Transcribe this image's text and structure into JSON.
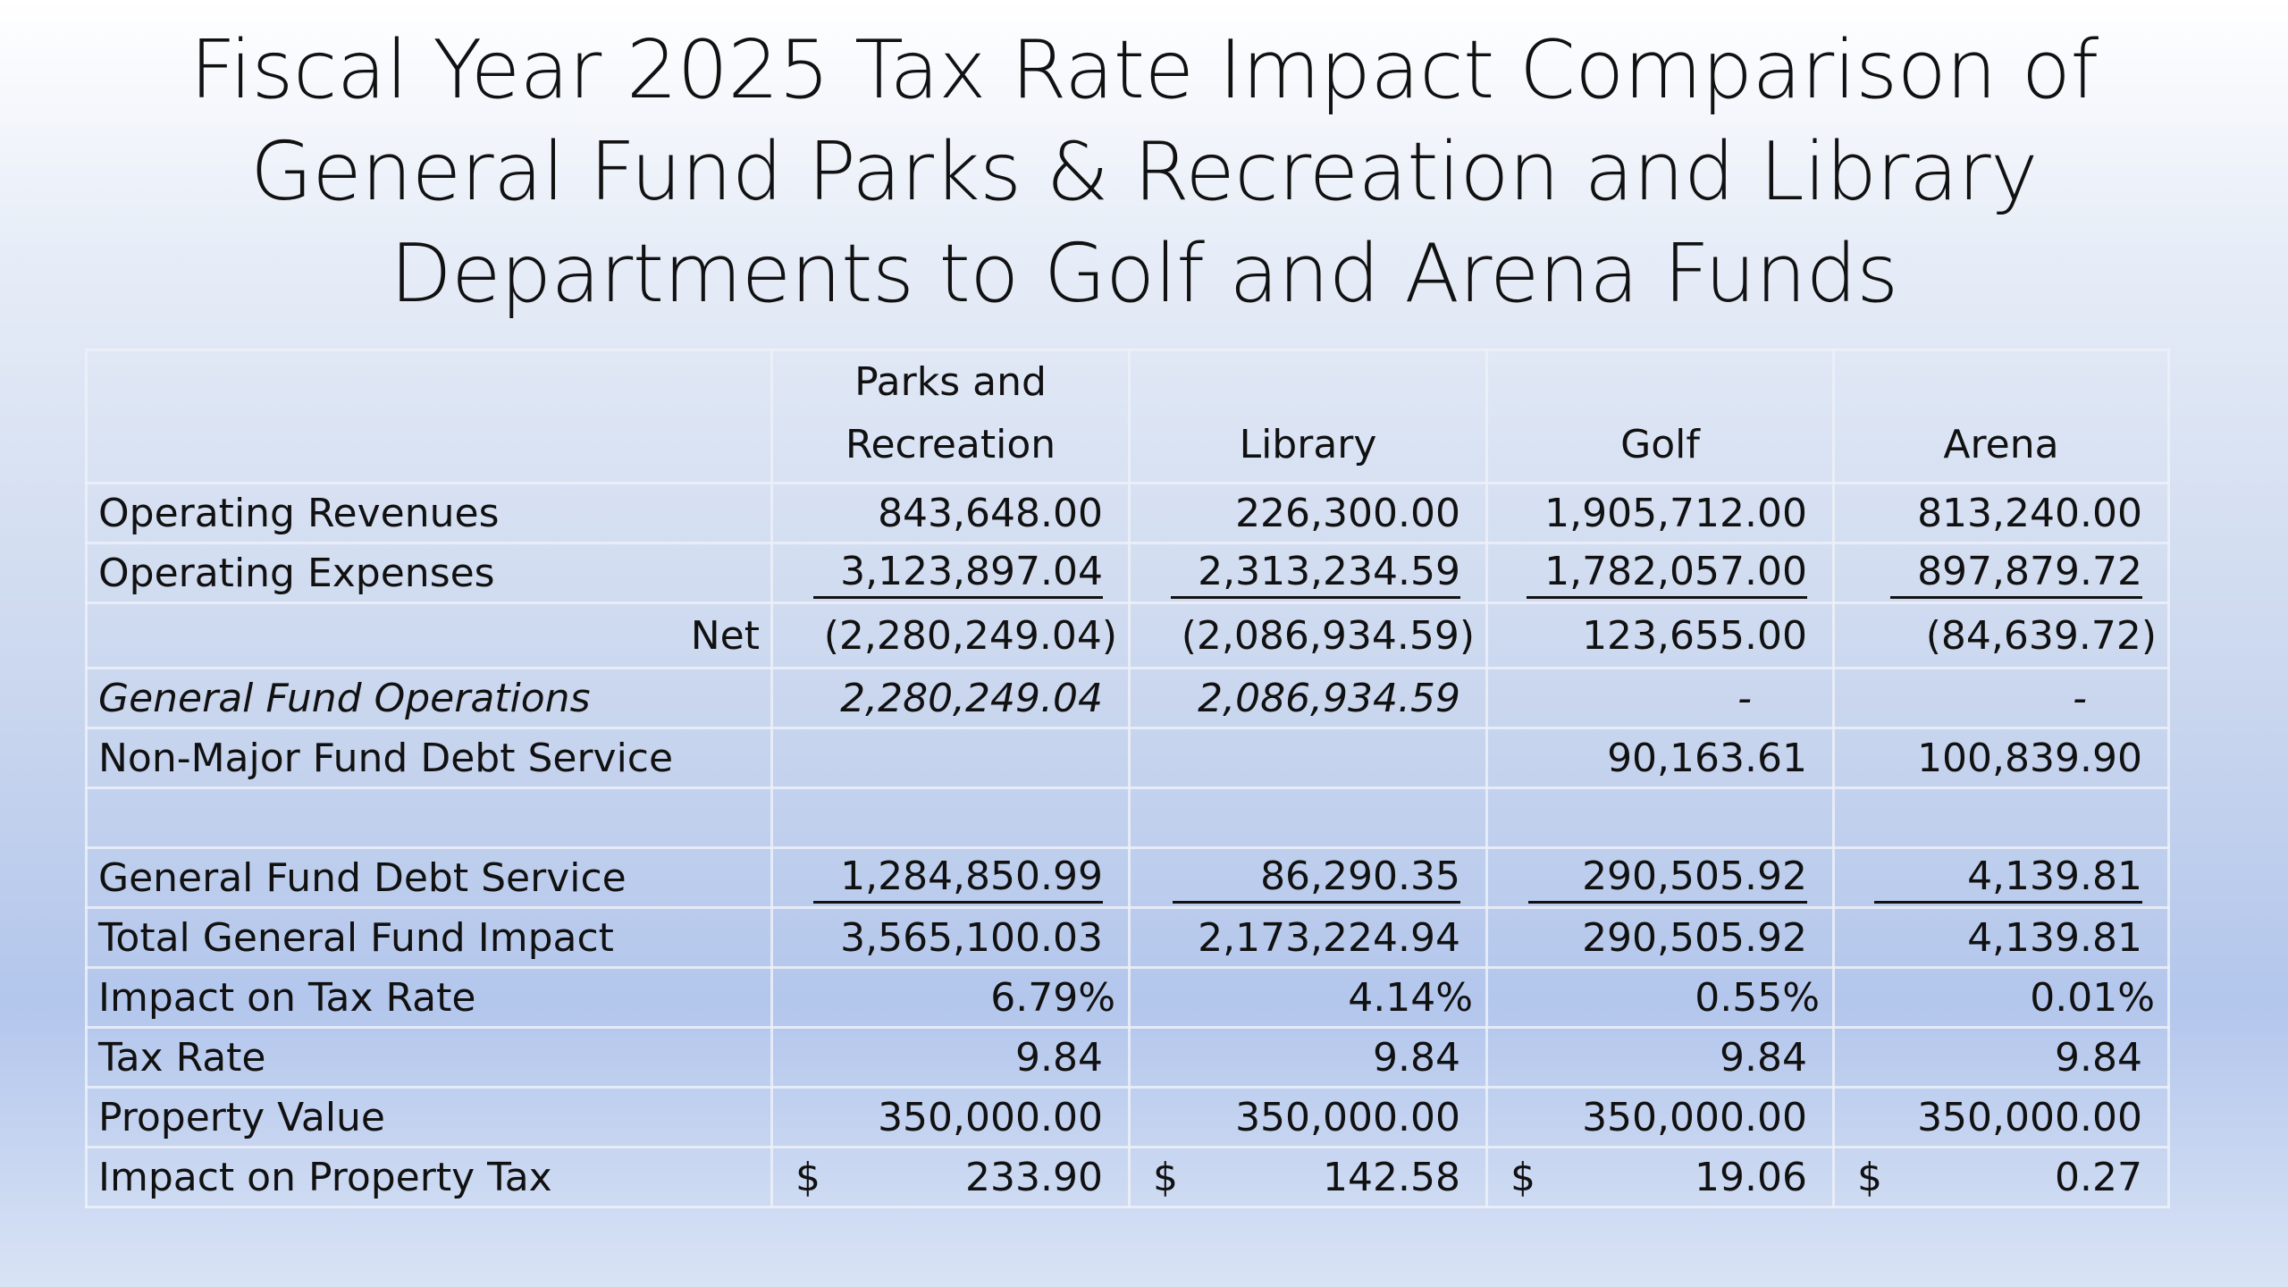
{
  "title": {
    "line1": "Fiscal Year 2025 Tax Rate Impact Comparison of",
    "line2": "General Fund Parks & Recreation and Library",
    "line3": "Departments to Golf and Arena Funds"
  },
  "table": {
    "headers": {
      "parks_line1": "Parks and",
      "parks_line2": "Recreation",
      "library": "Library",
      "golf": "Golf",
      "arena": "Arena"
    },
    "rows": {
      "operating_revenues": {
        "label": "Operating Revenues",
        "parks": "843,648.00",
        "library": "226,300.00",
        "golf": "1,905,712.00",
        "arena": "813,240.00"
      },
      "operating_expenses": {
        "label": "Operating Expenses",
        "parks": "3,123,897.04",
        "library": "2,313,234.59",
        "golf": "1,782,057.00",
        "arena": "897,879.72"
      },
      "net": {
        "label": "Net",
        "parks": "(2,280,249.04)",
        "library": "(2,086,934.59)",
        "golf": "123,655.00",
        "arena": "(84,639.72)"
      },
      "gf_operations": {
        "label": "General Fund Operations",
        "parks": "2,280,249.04",
        "library": "2,086,934.59",
        "golf": "-",
        "arena": "-"
      },
      "nonmajor_debt": {
        "label": "Non-Major Fund Debt Service",
        "parks": "",
        "library": "",
        "golf": "90,163.61",
        "arena": "100,839.90"
      },
      "gf_debt": {
        "label": "General Fund Debt Service",
        "parks": "1,284,850.99",
        "library": "86,290.35",
        "golf": "290,505.92",
        "arena": "4,139.81"
      },
      "total_gf_impact": {
        "label": "Total General Fund Impact",
        "parks": "3,565,100.03",
        "library": "2,173,224.94",
        "golf": "290,505.92",
        "arena": "4,139.81"
      },
      "impact_tax_rate": {
        "label": "Impact on Tax Rate",
        "parks": "6.79%",
        "library": "4.14%",
        "golf": "0.55%",
        "arena": "0.01%"
      },
      "tax_rate": {
        "label": "Tax Rate",
        "parks": "9.84",
        "library": "9.84",
        "golf": "9.84",
        "arena": "9.84"
      },
      "property_value": {
        "label": "Property Value",
        "parks": "350,000.00",
        "library": "350,000.00",
        "golf": "350,000.00",
        "arena": "350,000.00"
      },
      "impact_property_tax": {
        "label": "Impact on Property Tax",
        "currency": "$",
        "parks": "233.90",
        "library": "142.58",
        "golf": "19.06",
        "arena": "0.27"
      }
    }
  }
}
